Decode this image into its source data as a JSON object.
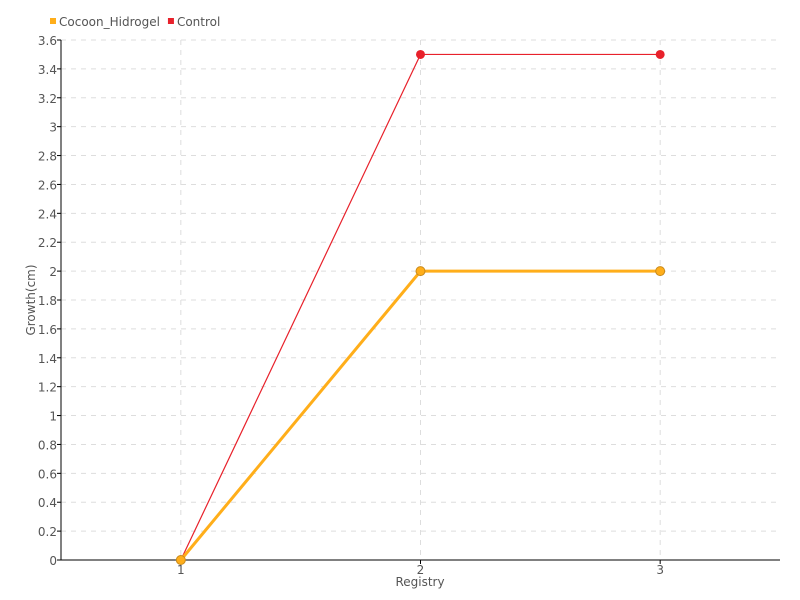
{
  "chart_data": {
    "type": "line",
    "title": "",
    "xlabel": "Registry",
    "ylabel": "Growth(cm)",
    "x": [
      1,
      2,
      3
    ],
    "xlim": [
      0.5,
      3.5
    ],
    "ylim": [
      0,
      3.6
    ],
    "yticks": [
      "0",
      "0.2",
      "0.4",
      "0.6",
      "0.8",
      "1",
      "1.2",
      "1.4",
      "1.6",
      "1.8",
      "2",
      "2.2",
      "2.4",
      "2.6",
      "2.8",
      "3",
      "3.2",
      "3.4",
      "3.6"
    ],
    "xticks": [
      "1",
      "2",
      "3"
    ],
    "grid": true,
    "legend_position": "top-left",
    "series": [
      {
        "name": "Cocoon_Hidrogel",
        "values": [
          0,
          2,
          2
        ],
        "color": "#ffae1a"
      },
      {
        "name": "Control",
        "values": [
          0,
          3.5,
          3.5
        ],
        "color": "#e8212b"
      }
    ]
  }
}
